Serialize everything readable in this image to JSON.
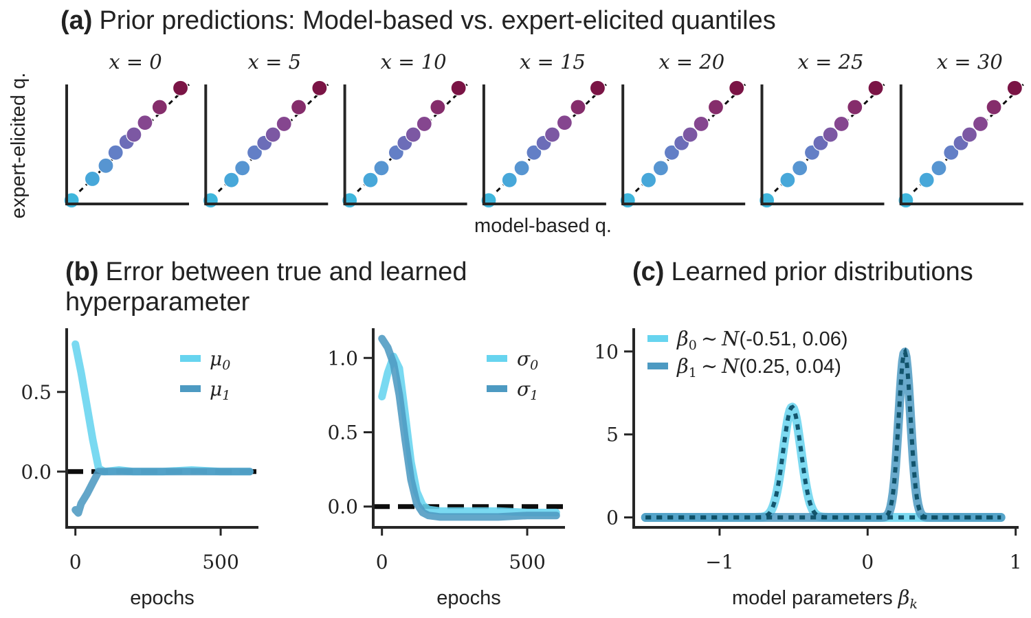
{
  "panel_a": {
    "tag": "(a)",
    "title": "Prior predictions: Model-based vs. expert-elicited quantiles",
    "ylabel": "expert-elicited q.",
    "xlabel": "model-based q.",
    "quantile_colors": [
      "#3fb6dc",
      "#47a7d9",
      "#5795d1",
      "#637fc6",
      "#6c6db8",
      "#7c58a3",
      "#85468f",
      "#852d6b",
      "#7a1445"
    ]
  },
  "panel_b": {
    "tag": "(b)",
    "title": "Error between true and learned",
    "title_line2": "hyperparameter",
    "xlabel": "epochs"
  },
  "panel_c": {
    "tag": "(c)",
    "title": "Learned prior distributions",
    "xlabel": "model parameters",
    "xlabel_symbol": "β",
    "xlabel_sub": "k"
  },
  "colors": {
    "light": "#67d4ef",
    "dark": "#4d9ac2",
    "ref": "#0d0d0d",
    "truth": "#0e4f66"
  },
  "chart_data": [
    {
      "type": "scatter",
      "panel": "a",
      "facets": [
        "x = 0",
        "x = 5",
        "x = 10",
        "x = 15",
        "x = 20",
        "x = 25",
        "x = 30"
      ],
      "series": [
        {
          "facet": "x = 0",
          "model_q": [
            0.04,
            0.21,
            0.32,
            0.4,
            0.49,
            0.55,
            0.64,
            0.76,
            0.93
          ],
          "expert_q": [
            0.03,
            0.21,
            0.32,
            0.43,
            0.52,
            0.58,
            0.68,
            0.81,
            0.97
          ]
        },
        {
          "facet": "x = 5",
          "model_q": [
            0.04,
            0.21,
            0.3,
            0.4,
            0.48,
            0.55,
            0.64,
            0.76,
            0.93
          ],
          "expert_q": [
            0.03,
            0.2,
            0.3,
            0.43,
            0.51,
            0.58,
            0.67,
            0.81,
            0.97
          ]
        },
        {
          "facet": "x = 10",
          "model_q": [
            0.04,
            0.21,
            0.3,
            0.42,
            0.49,
            0.56,
            0.65,
            0.76,
            0.93
          ],
          "expert_q": [
            0.03,
            0.2,
            0.3,
            0.43,
            0.51,
            0.58,
            0.67,
            0.81,
            0.97
          ]
        },
        {
          "facet": "x = 15",
          "model_q": [
            0.04,
            0.21,
            0.31,
            0.41,
            0.49,
            0.56,
            0.66,
            0.77,
            0.93
          ],
          "expert_q": [
            0.03,
            0.2,
            0.3,
            0.43,
            0.51,
            0.58,
            0.68,
            0.81,
            0.97
          ]
        },
        {
          "facet": "x = 20",
          "model_q": [
            0.04,
            0.21,
            0.31,
            0.4,
            0.48,
            0.55,
            0.64,
            0.76,
            0.93
          ],
          "expert_q": [
            0.03,
            0.2,
            0.3,
            0.43,
            0.51,
            0.58,
            0.67,
            0.81,
            0.97
          ]
        },
        {
          "facet": "x = 25",
          "model_q": [
            0.04,
            0.21,
            0.31,
            0.41,
            0.48,
            0.56,
            0.65,
            0.76,
            0.93
          ],
          "expert_q": [
            0.03,
            0.2,
            0.3,
            0.43,
            0.51,
            0.58,
            0.67,
            0.81,
            0.97
          ]
        },
        {
          "facet": "x = 30",
          "model_q": [
            0.04,
            0.21,
            0.31,
            0.41,
            0.49,
            0.56,
            0.65,
            0.76,
            0.93
          ],
          "expert_q": [
            0.03,
            0.2,
            0.3,
            0.43,
            0.51,
            0.58,
            0.67,
            0.81,
            0.97
          ]
        }
      ],
      "reference_line": "identity",
      "xlabel": "model-based q.",
      "ylabel": "expert-elicited q."
    },
    {
      "type": "line",
      "panel": "b-left",
      "xlim": [
        -30,
        630
      ],
      "ylim": [
        -0.35,
        0.9
      ],
      "xticks": [
        0,
        500
      ],
      "yticks": [
        0.0,
        0.5
      ],
      "xlabel": "epochs",
      "reference_y": 0.0,
      "series": [
        {
          "name": "μ0",
          "x": [
            0,
            20,
            40,
            60,
            80,
            100,
            150,
            200,
            300,
            400,
            500,
            600
          ],
          "y": [
            0.8,
            0.62,
            0.41,
            0.2,
            0.02,
            0.0,
            0.01,
            0.0,
            0.0,
            0.01,
            0.0,
            0.0
          ]
        },
        {
          "name": "μ1",
          "x": [
            0,
            10,
            20,
            40,
            60,
            80,
            100,
            150,
            200,
            300,
            400,
            500,
            600
          ],
          "y": [
            -0.24,
            -0.26,
            -0.2,
            -0.14,
            -0.07,
            0.0,
            0.0,
            0.0,
            0.0,
            0.0,
            0.0,
            0.0,
            0.0
          ]
        }
      ]
    },
    {
      "type": "line",
      "panel": "b-right",
      "xlim": [
        -30,
        630
      ],
      "ylim": [
        -0.14,
        1.2
      ],
      "xticks": [
        0,
        500
      ],
      "yticks": [
        0.0,
        0.5,
        1.0
      ],
      "xlabel": "epochs",
      "reference_y": 0.0,
      "series": [
        {
          "name": "σ0",
          "x": [
            0,
            20,
            40,
            60,
            80,
            100,
            120,
            140,
            160,
            200,
            300,
            400,
            500,
            600
          ],
          "y": [
            0.74,
            0.9,
            1.01,
            0.93,
            0.62,
            0.3,
            0.1,
            0.01,
            -0.02,
            -0.03,
            -0.03,
            -0.03,
            -0.04,
            -0.04
          ]
        },
        {
          "name": "σ1",
          "x": [
            0,
            20,
            40,
            60,
            80,
            100,
            120,
            140,
            160,
            200,
            300,
            400,
            500,
            600
          ],
          "y": [
            1.13,
            1.07,
            0.96,
            0.75,
            0.45,
            0.18,
            0.02,
            -0.04,
            -0.06,
            -0.07,
            -0.07,
            -0.07,
            -0.06,
            -0.06
          ]
        }
      ]
    },
    {
      "type": "line",
      "panel": "c",
      "xlim": [
        -1.58,
        1.02
      ],
      "ylim": [
        -0.6,
        11.4
      ],
      "xticks": [
        -1,
        0,
        1
      ],
      "yticks": [
        0,
        5,
        10
      ],
      "xlabel": "model parameters βk",
      "series": [
        {
          "name": "β0 ~ N(-0.51, 0.06)",
          "dist": "normal",
          "mean": -0.51,
          "sd": 0.06,
          "domain": [
            -1.5,
            0.9
          ]
        },
        {
          "name": "β1 ~ N(0.25, 0.04)",
          "dist": "normal",
          "mean": 0.25,
          "sd": 0.04,
          "domain": [
            -1.5,
            0.9
          ]
        }
      ],
      "true_priors": [
        {
          "dist": "normal",
          "mean": -0.51,
          "sd": 0.06
        },
        {
          "dist": "normal",
          "mean": 0.25,
          "sd": 0.04
        }
      ]
    }
  ]
}
